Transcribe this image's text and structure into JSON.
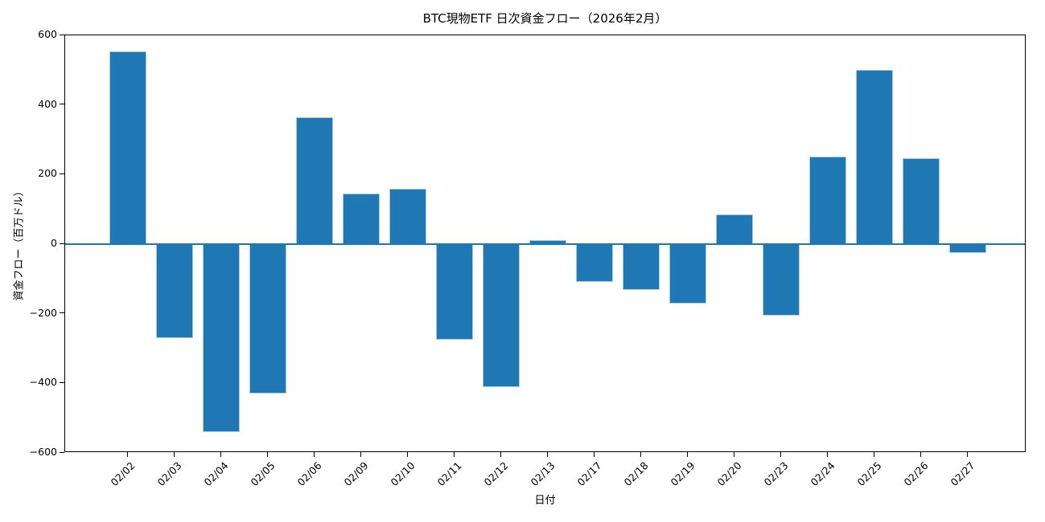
{
  "chart_data": {
    "type": "bar",
    "title": "BTC現物ETF 日次資金フロー（2026年2月）",
    "xlabel": "日付",
    "ylabel": "資金フロー（百万ドル）",
    "categories": [
      "02/02",
      "02/03",
      "02/04",
      "02/05",
      "02/06",
      "02/09",
      "02/10",
      "02/11",
      "02/12",
      "02/13",
      "02/17",
      "02/18",
      "02/19",
      "02/20",
      "02/23",
      "02/24",
      "02/25",
      "02/26",
      "02/27"
    ],
    "values": [
      555,
      -270,
      -540,
      -430,
      365,
      145,
      160,
      -275,
      -410,
      12,
      -108,
      -132,
      -170,
      85,
      -205,
      252,
      500,
      248,
      -25
    ],
    "ylim": [
      -600,
      600
    ],
    "yticks": [
      600,
      400,
      200,
      0,
      -200,
      -400,
      -600
    ],
    "grid": false,
    "legend": null,
    "zero_line": true,
    "bar_color": "#1f77b4",
    "bar_edge_color": "#a9cce3",
    "zero_line_color": "#1f77b4",
    "axis_color": "#000000",
    "background_color": "#ffffff"
  }
}
